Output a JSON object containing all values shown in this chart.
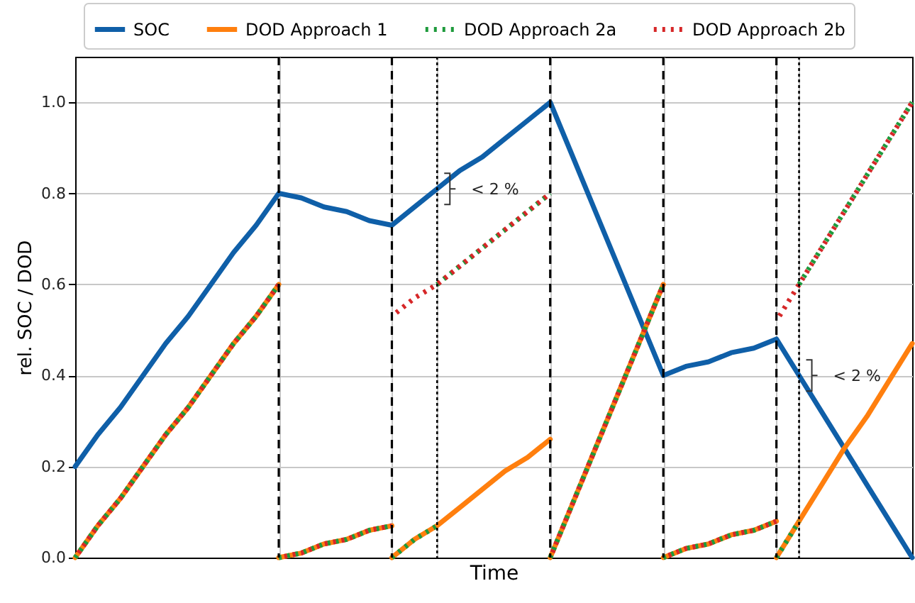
{
  "chart_data": {
    "type": "line",
    "xlabel": "Time",
    "ylabel": "rel. SOC / DOD",
    "categories": [
      null,
      null,
      null,
      null,
      null,
      null,
      null,
      null,
      null,
      null,
      null,
      null,
      null,
      null,
      null,
      null,
      null,
      null,
      null,
      null,
      null,
      null,
      null,
      null,
      null,
      null,
      null,
      null,
      null,
      null,
      null,
      null,
      null,
      null,
      null,
      null,
      null,
      null
    ],
    "ylim": [
      0,
      1.1
    ],
    "yticks": [
      {
        "value": 0,
        "label": "0.0"
      },
      0.2,
      0.4,
      0.6,
      0.8,
      {
        "value": 1,
        "label": "1.0"
      }
    ],
    "grid": true,
    "legend": "top",
    "series": [
      {
        "name": "SOC",
        "color": "#0f5fa8",
        "line_style": "solid",
        "values": [
          0.2,
          0.27,
          0.33,
          0.4,
          0.47,
          0.53,
          0.6,
          0.67,
          0.73,
          0.8,
          0.79,
          0.77,
          0.76,
          0.74,
          0.73,
          0.77,
          0.81,
          0.85,
          0.88,
          0.92,
          0.96,
          1.0,
          0.88,
          0.76,
          0.64,
          0.52,
          0.4,
          0.42,
          0.43,
          0.45,
          0.46,
          0.48,
          0.4,
          0.32,
          0.24,
          0.16,
          0.08,
          0.0
        ]
      },
      {
        "name": "DOD Approach 1",
        "color": "#ff7f0e",
        "line_style": "solid",
        "values": [
          0,
          0.07,
          0.13,
          0.2,
          0.27,
          0.33,
          0.4,
          0.47,
          0.53,
          0.6,
          null,
          null,
          null,
          null,
          null,
          null,
          null,
          null,
          null,
          null,
          null,
          null,
          null,
          null,
          null,
          null,
          null,
          null,
          null,
          null,
          null,
          null,
          null,
          null,
          null,
          null,
          null,
          null
        ]
      },
      {
        "color": "#ff7f0e",
        "line_style": "solid",
        "values": [
          null,
          null,
          null,
          null,
          null,
          null,
          null,
          null,
          null,
          0,
          0.01,
          0.03,
          0.04,
          0.06,
          0.07,
          null,
          null,
          null,
          null,
          null,
          null,
          null,
          null,
          null,
          null,
          null,
          null,
          null,
          null,
          null,
          null,
          null,
          null,
          null,
          null,
          null,
          null,
          null
        ]
      },
      {
        "color": "#ff7f0e",
        "line_style": "solid",
        "values": [
          null,
          null,
          null,
          null,
          null,
          null,
          null,
          null,
          null,
          null,
          null,
          null,
          null,
          null,
          0,
          0.04,
          0.07,
          0.11,
          0.15,
          0.19,
          0.22,
          0.26,
          null,
          null,
          null,
          null,
          null,
          null,
          null,
          null,
          null,
          null,
          null,
          null,
          null,
          null,
          null,
          null
        ]
      },
      {
        "color": "#ff7f0e",
        "line_style": "solid",
        "values": [
          null,
          null,
          null,
          null,
          null,
          null,
          null,
          null,
          null,
          null,
          null,
          null,
          null,
          null,
          null,
          null,
          null,
          null,
          null,
          null,
          null,
          0,
          0.12,
          0.24,
          0.36,
          0.48,
          0.6,
          null,
          null,
          null,
          null,
          null,
          null,
          null,
          null,
          null,
          null,
          null
        ]
      },
      {
        "color": "#ff7f0e",
        "line_style": "solid",
        "values": [
          null,
          null,
          null,
          null,
          null,
          null,
          null,
          null,
          null,
          null,
          null,
          null,
          null,
          null,
          null,
          null,
          null,
          null,
          null,
          null,
          null,
          null,
          null,
          null,
          null,
          null,
          0,
          0.02,
          0.03,
          0.05,
          0.06,
          0.08,
          null,
          null,
          null,
          null,
          null,
          null
        ]
      },
      {
        "color": "#ff7f0e",
        "line_style": "solid",
        "values": [
          null,
          null,
          null,
          null,
          null,
          null,
          null,
          null,
          null,
          null,
          null,
          null,
          null,
          null,
          null,
          null,
          null,
          null,
          null,
          null,
          null,
          null,
          null,
          null,
          null,
          null,
          null,
          null,
          null,
          null,
          null,
          0,
          0.08,
          0.16,
          0.24,
          0.31,
          0.39,
          0.47
        ]
      },
      {
        "name": "DOD Approach 2a",
        "color": "#1e9a3c",
        "line_style": "dotted",
        "values": [
          0,
          0.07,
          0.13,
          0.2,
          0.27,
          0.33,
          0.4,
          0.47,
          0.53,
          0.6,
          null,
          null,
          null,
          null,
          null,
          null,
          null,
          null,
          null,
          null,
          null,
          null,
          null,
          null,
          null,
          null,
          null,
          null,
          null,
          null,
          null,
          null,
          null,
          null,
          null,
          null,
          null,
          null
        ]
      },
      {
        "color": "#1e9a3c",
        "line_style": "dotted",
        "values": [
          null,
          null,
          null,
          null,
          null,
          null,
          null,
          null,
          null,
          0,
          0.01,
          0.03,
          0.04,
          0.06,
          0.07,
          null,
          null,
          null,
          null,
          null,
          null,
          null,
          null,
          null,
          null,
          null,
          null,
          null,
          null,
          null,
          null,
          null,
          null,
          null,
          null,
          null,
          null,
          null
        ]
      },
      {
        "color": "#1e9a3c",
        "line_style": "dotted",
        "values": [
          null,
          null,
          null,
          null,
          null,
          null,
          null,
          null,
          null,
          null,
          null,
          null,
          null,
          null,
          0,
          0.04,
          0.07,
          null,
          null,
          null,
          null,
          null,
          null,
          null,
          null,
          null,
          null,
          null,
          null,
          null,
          null,
          null,
          null,
          null,
          null,
          null,
          null,
          null
        ]
      },
      {
        "color": "#1e9a3c",
        "line_style": "dotted",
        "values": [
          null,
          null,
          null,
          null,
          null,
          null,
          null,
          null,
          null,
          null,
          null,
          null,
          null,
          null,
          null,
          null,
          0.6,
          0.64,
          0.68,
          0.72,
          0.76,
          0.8,
          null,
          null,
          null,
          null,
          null,
          null,
          null,
          null,
          null,
          null,
          null,
          null,
          null,
          null,
          null,
          null
        ]
      },
      {
        "color": "#1e9a3c",
        "line_style": "dotted",
        "values": [
          null,
          null,
          null,
          null,
          null,
          null,
          null,
          null,
          null,
          null,
          null,
          null,
          null,
          null,
          null,
          null,
          null,
          null,
          null,
          null,
          null,
          0,
          0.12,
          0.24,
          0.36,
          0.48,
          0.6,
          null,
          null,
          null,
          null,
          null,
          null,
          null,
          null,
          null,
          null,
          null
        ]
      },
      {
        "color": "#1e9a3c",
        "line_style": "dotted",
        "values": [
          null,
          null,
          null,
          null,
          null,
          null,
          null,
          null,
          null,
          null,
          null,
          null,
          null,
          null,
          null,
          null,
          null,
          null,
          null,
          null,
          null,
          null,
          null,
          null,
          null,
          null,
          0,
          0.02,
          0.03,
          0.05,
          0.06,
          0.08,
          null,
          null,
          null,
          null,
          null,
          null
        ]
      },
      {
        "color": "#1e9a3c",
        "line_style": "dotted",
        "values": [
          null,
          null,
          null,
          null,
          null,
          null,
          null,
          null,
          null,
          null,
          null,
          null,
          null,
          null,
          null,
          null,
          null,
          null,
          null,
          null,
          null,
          null,
          null,
          null,
          null,
          null,
          null,
          null,
          null,
          null,
          null,
          0,
          0.08,
          null,
          null,
          null,
          null,
          null
        ]
      },
      {
        "color": "#1e9a3c",
        "line_style": "dotted",
        "values": [
          null,
          null,
          null,
          null,
          null,
          null,
          null,
          null,
          null,
          null,
          null,
          null,
          null,
          null,
          null,
          null,
          null,
          null,
          null,
          null,
          null,
          null,
          null,
          null,
          null,
          null,
          null,
          null,
          null,
          null,
          null,
          null,
          0.6,
          0.68,
          0.76,
          0.84,
          0.92,
          1.0
        ]
      },
      {
        "name": "DOD Approach 2b",
        "color": "#d62728",
        "line_style": "dotted",
        "values": [
          0,
          0.07,
          0.13,
          0.2,
          0.27,
          0.33,
          0.4,
          0.47,
          0.53,
          0.6,
          null,
          null,
          null,
          null,
          null,
          null,
          null,
          null,
          null,
          null,
          null,
          null,
          null,
          null,
          null,
          null,
          null,
          null,
          null,
          null,
          null,
          null,
          null,
          null,
          null,
          null,
          null,
          null
        ]
      },
      {
        "color": "#d62728",
        "line_style": "dotted",
        "values": [
          null,
          null,
          null,
          null,
          null,
          null,
          null,
          null,
          null,
          0,
          0.01,
          0.03,
          0.04,
          0.06,
          0.07,
          null,
          null,
          null,
          null,
          null,
          null,
          null,
          null,
          null,
          null,
          null,
          null,
          null,
          null,
          null,
          null,
          null,
          null,
          null,
          null,
          null,
          null,
          null
        ]
      },
      {
        "color": "#d62728",
        "line_style": "dotted",
        "values": [
          null,
          null,
          null,
          null,
          null,
          null,
          null,
          null,
          null,
          null,
          null,
          null,
          null,
          null,
          0.53,
          0.57,
          0.6,
          0.64,
          0.68,
          0.72,
          0.76,
          0.8,
          null,
          null,
          null,
          null,
          null,
          null,
          null,
          null,
          null,
          null,
          null,
          null,
          null,
          null,
          null,
          null
        ]
      },
      {
        "color": "#d62728",
        "line_style": "dotted",
        "values": [
          null,
          null,
          null,
          null,
          null,
          null,
          null,
          null,
          null,
          null,
          null,
          null,
          null,
          null,
          null,
          null,
          null,
          null,
          null,
          null,
          null,
          0,
          0.12,
          0.24,
          0.36,
          0.48,
          0.6,
          null,
          null,
          null,
          null,
          null,
          null,
          null,
          null,
          null,
          null,
          null
        ]
      },
      {
        "color": "#d62728",
        "line_style": "dotted",
        "values": [
          null,
          null,
          null,
          null,
          null,
          null,
          null,
          null,
          null,
          null,
          null,
          null,
          null,
          null,
          null,
          null,
          null,
          null,
          null,
          null,
          null,
          null,
          null,
          null,
          null,
          null,
          0,
          0.02,
          0.03,
          0.05,
          0.06,
          0.08,
          null,
          null,
          null,
          null,
          null,
          null
        ]
      },
      {
        "color": "#d62728",
        "line_style": "dotted",
        "values": [
          null,
          null,
          null,
          null,
          null,
          null,
          null,
          null,
          null,
          null,
          null,
          null,
          null,
          null,
          null,
          null,
          null,
          null,
          null,
          null,
          null,
          null,
          null,
          null,
          null,
          null,
          null,
          null,
          null,
          null,
          null,
          0.52,
          0.6,
          0.68,
          0.76,
          0.84,
          0.92,
          1.0
        ]
      }
    ],
    "annotations": [
      "< 2 %",
      "< 2 %"
    ]
  }
}
